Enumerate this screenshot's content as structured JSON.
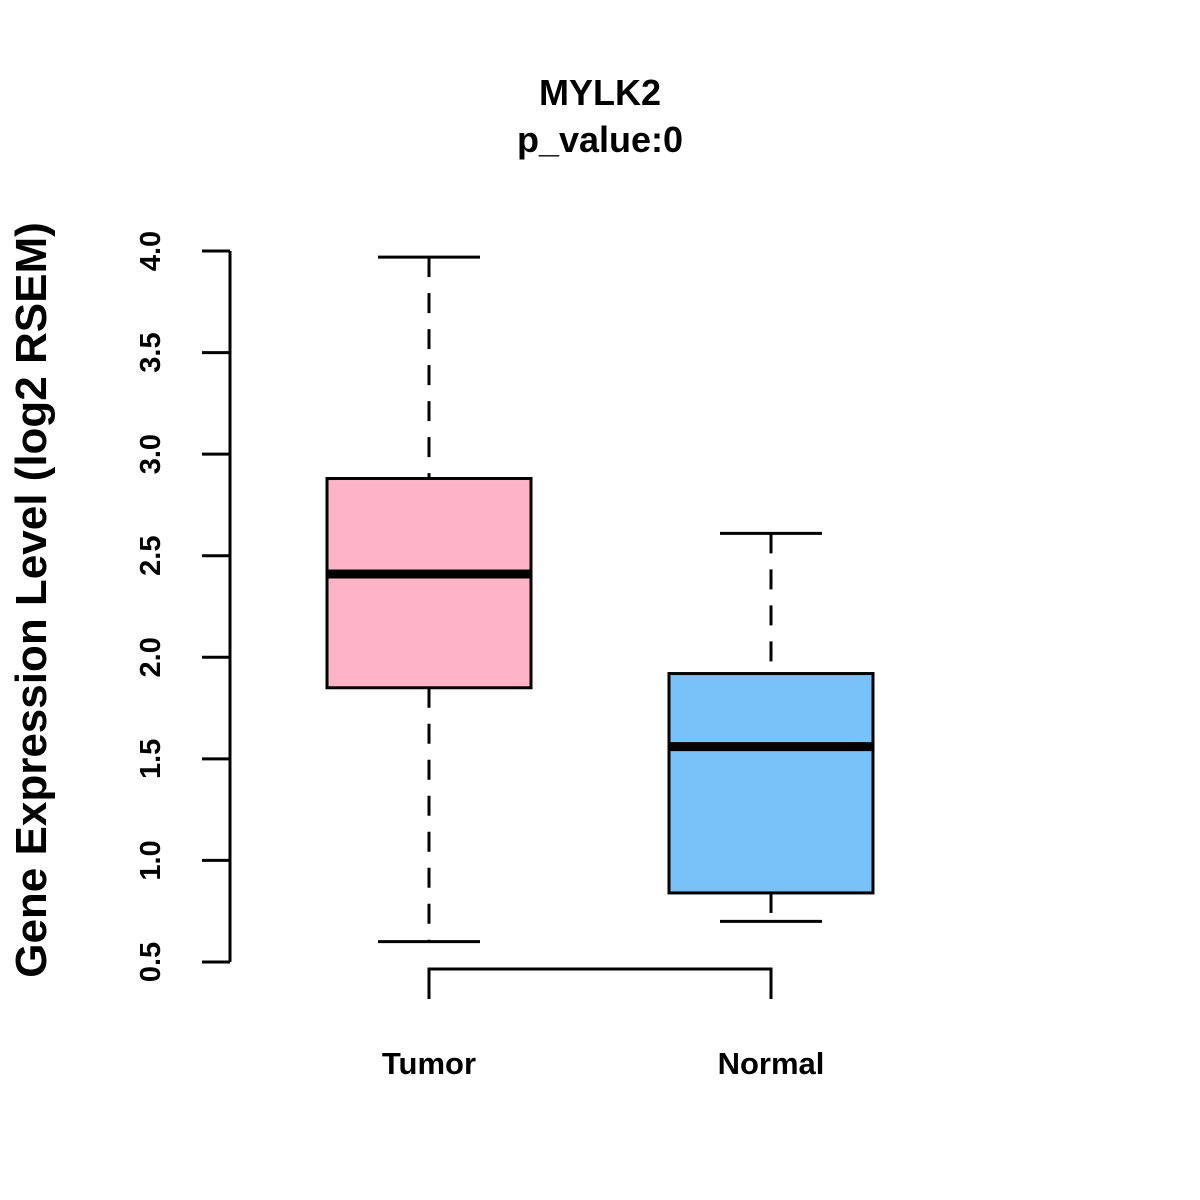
{
  "chart_data": {
    "type": "box",
    "title": "MYLK2",
    "subtitle": "p_value:0",
    "xlabel": "",
    "ylabel": "Gene Expression Level (log2 RSEM)",
    "ylim": [
      0.5,
      4.0
    ],
    "y_ticks": [
      "0.5",
      "1.0",
      "1.5",
      "2.0",
      "2.5",
      "3.0",
      "3.5",
      "4.0"
    ],
    "categories": [
      "Tumor",
      "Normal"
    ],
    "series": [
      {
        "name": "Tumor",
        "whisker_low": 0.6,
        "q1": 1.85,
        "median": 2.41,
        "q3": 2.88,
        "whisker_high": 3.97,
        "color": "#FFB3C6"
      },
      {
        "name": "Normal",
        "whisker_low": 0.7,
        "q1": 0.84,
        "median": 1.56,
        "q3": 1.92,
        "whisker_high": 2.61,
        "color": "#79C1F9"
      }
    ],
    "comparison_bracket": [
      "Tumor",
      "Normal"
    ],
    "grid": false,
    "legend": "none"
  }
}
